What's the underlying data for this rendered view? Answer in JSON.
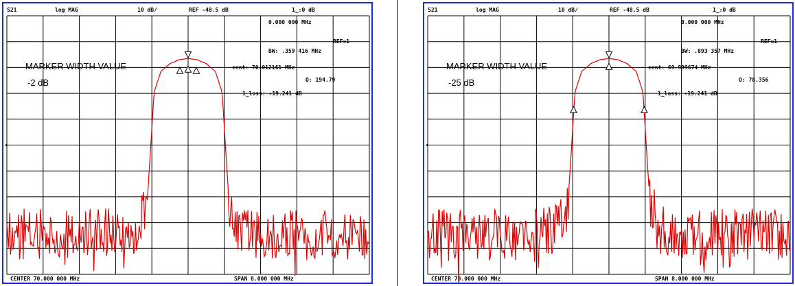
{
  "colors": {
    "trace": "#e00000",
    "grid": "#000000",
    "frame": "#1a2fd0"
  },
  "panels": [
    {
      "param": "S21",
      "format": "log MAG",
      "scale": "10 dB/",
      "ref": "REF -48.5 dB",
      "marker_readout": "1_:0   dB",
      "marker_freq": "0.000 000 MHz",
      "ref_marker": "REF=1",
      "bw": "BW:   .359 416 MHz",
      "cent": "cent:  70.012161 MHz",
      "q": "Q: 194.79",
      "loss": "1_loss: -19.241 dB",
      "width_label": "MARKER WIDTH VALUE",
      "width_value": "-2 dB",
      "center": "CENTER  70.000 000 MHz",
      "span": "SPAN   8.000 000 MHz"
    },
    {
      "param": "S21",
      "format": "log MAG",
      "scale": "10 dB/",
      "ref": "REF -48.5 dB",
      "marker_readout": "1_:0   dB",
      "marker_freq": "0.000 000 MHz",
      "ref_marker": "REF=1",
      "bw": "BW:   .893 357 MHz",
      "cent": "cent:  69.999674 MHz",
      "q": "Q: 78.356",
      "loss": "1_loss: -19.241 dB",
      "width_label": "MARKER WIDTH VALUE",
      "width_value": "-25 dB",
      "center": "CENTER  70.000 000 MHz",
      "span": "SPAN   8.000 000 MHz"
    }
  ],
  "chart_data": [
    {
      "type": "line",
      "xlabel": "",
      "ylabel": "",
      "xlim": [
        66,
        74
      ],
      "ylim": [
        -148.5,
        -48.5
      ],
      "grid": true,
      "width_value_db": -2,
      "series": [
        {
          "x": [
            66.0,
            68.4,
            68.9,
            69.1,
            69.25,
            69.4,
            69.6,
            69.8,
            70.0,
            70.2,
            70.4,
            70.6,
            70.75,
            70.9,
            71.1,
            71.6,
            74.0
          ],
          "y": [
            -133,
            -133,
            -131,
            -120,
            -78,
            -70,
            -67,
            -65.5,
            -65,
            -65.5,
            -67,
            -70,
            -78,
            -120,
            -131,
            -133,
            -133
          ]
        }
      ]
    },
    {
      "type": "line",
      "xlabel": "",
      "ylabel": "",
      "xlim": [
        66,
        74
      ],
      "ylim": [
        -148.5,
        -48.5
      ],
      "grid": true,
      "width_value_db": -25,
      "series": [
        {
          "x": [
            66.0,
            68.4,
            68.9,
            69.1,
            69.25,
            69.4,
            69.6,
            69.8,
            70.0,
            70.2,
            70.4,
            70.6,
            70.75,
            70.9,
            71.1,
            71.6,
            74.0
          ],
          "y": [
            -133,
            -133,
            -131,
            -120,
            -78,
            -70,
            -67,
            -65.5,
            -65,
            -65.5,
            -67,
            -70,
            -78,
            -120,
            -131,
            -133,
            -133
          ]
        }
      ]
    }
  ]
}
